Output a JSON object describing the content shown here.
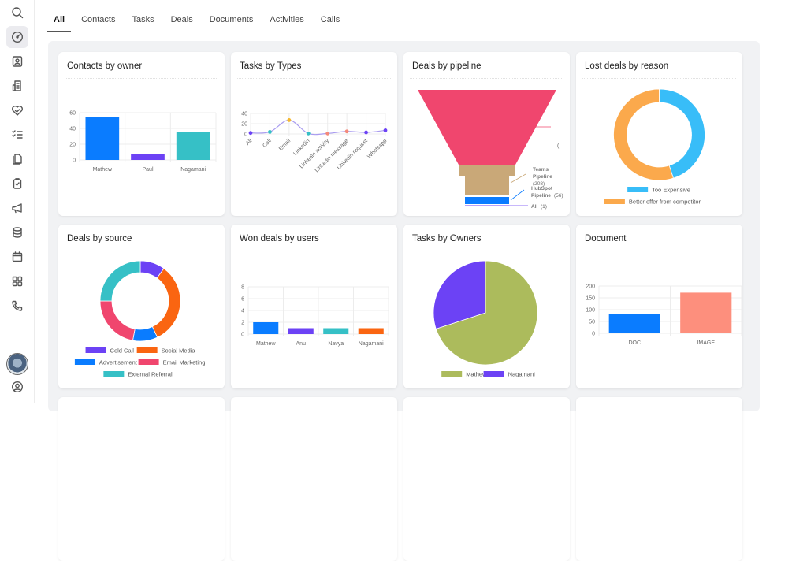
{
  "sidebar": {
    "items": [
      {
        "name": "search-icon"
      },
      {
        "name": "dashboard-icon",
        "active": true
      },
      {
        "name": "contacts-icon"
      },
      {
        "name": "companies-icon"
      },
      {
        "name": "deals-icon"
      },
      {
        "name": "tasks-icon"
      },
      {
        "name": "documents-icon"
      },
      {
        "name": "activities-icon"
      },
      {
        "name": "campaigns-icon"
      },
      {
        "name": "database-icon"
      },
      {
        "name": "calendar-icon"
      },
      {
        "name": "apps-icon"
      },
      {
        "name": "calls-icon"
      }
    ],
    "bottom": [
      "avatar",
      "profile-icon"
    ]
  },
  "tabs": [
    {
      "label": "All",
      "active": true
    },
    {
      "label": "Contacts"
    },
    {
      "label": "Tasks"
    },
    {
      "label": "Deals"
    },
    {
      "label": "Documents"
    },
    {
      "label": "Activities"
    },
    {
      "label": "Calls"
    }
  ],
  "cards": {
    "contacts_by_owner": {
      "title": "Contacts by owner"
    },
    "tasks_by_types": {
      "title": "Tasks by Types"
    },
    "deals_by_pipeline": {
      "title": "Deals by pipeline"
    },
    "lost_deals_by_reason": {
      "title": "Lost deals by reason"
    },
    "deals_by_source": {
      "title": "Deals by source"
    },
    "won_deals_by_users": {
      "title": "Won deals by users"
    },
    "tasks_by_owners": {
      "title": "Tasks by Owners"
    },
    "document": {
      "title": "Document"
    }
  },
  "chart_data": [
    {
      "id": "contacts_by_owner",
      "type": "bar",
      "title": "Contacts by owner",
      "categories": [
        "Mathew",
        "Paul",
        "Nagamani"
      ],
      "values": [
        55,
        8,
        36
      ],
      "colors": [
        "#0a7cff",
        "#6c42f5",
        "#36c0c6"
      ],
      "yticks": [
        0,
        20,
        40,
        60
      ],
      "ylim": [
        0,
        60
      ],
      "grid": true
    },
    {
      "id": "tasks_by_types",
      "type": "line",
      "title": "Tasks by Types",
      "categories": [
        "All",
        "Call",
        "Email",
        "Linkedin",
        "Linkedin activity",
        "Linkedin message",
        "Linkedin request",
        "Whatsapp"
      ],
      "values": [
        2,
        4,
        27,
        1,
        1,
        5,
        3,
        7
      ],
      "point_colors": [
        "#6c42f5",
        "#36c0c6",
        "#f5b82e",
        "#36c0c6",
        "#f58a7a",
        "#f58a7a",
        "#6c42f5",
        "#6c42f5"
      ],
      "yticks": [
        0,
        20,
        40
      ],
      "ylim": [
        0,
        40
      ],
      "grid": true
    },
    {
      "id": "deals_by_pipeline",
      "type": "funnel",
      "title": "Deals by pipeline",
      "labels": [
        "(...)",
        "Teams Pipeline (208)",
        "HubSpot Pipeline (56)",
        "All (1)"
      ],
      "stages": [
        {
          "label": "(...)",
          "color": "#f0466e"
        },
        {
          "label": "Teams Pipeline",
          "value": 208,
          "color": "#c9a878"
        },
        {
          "label": "HubSpot Pipeline",
          "value": 56,
          "color": "#0a7cff"
        },
        {
          "label": "All",
          "value": 1,
          "color": "#6c42f5"
        }
      ]
    },
    {
      "id": "lost_deals_by_reason",
      "type": "pie",
      "donut": true,
      "title": "Lost deals by reason",
      "labels": [
        "Too Expensive",
        "Better offer from competitor"
      ],
      "values": [
        45,
        55
      ],
      "colors": [
        "#38bdf8",
        "#fba94c"
      ],
      "legend_position": "bottom"
    },
    {
      "id": "deals_by_source",
      "type": "pie",
      "donut": true,
      "title": "Deals by source",
      "labels": [
        "Cold Call",
        "Social Media",
        "Advertisement",
        "Email Marketing",
        "External Referral"
      ],
      "values": [
        10,
        33,
        10,
        22,
        25
      ],
      "colors": [
        "#6c42f5",
        "#fa6511",
        "#0a7cff",
        "#f0466e",
        "#36c0c6"
      ],
      "legend_position": "bottom"
    },
    {
      "id": "won_deals_by_users",
      "type": "bar",
      "title": "Won deals by users",
      "categories": [
        "Mathew",
        "Anu",
        "Navya",
        "Nagamani"
      ],
      "values": [
        2,
        1,
        1,
        1
      ],
      "colors": [
        "#0a7cff",
        "#6c42f5",
        "#36c0c6",
        "#fa6511"
      ],
      "yticks": [
        0,
        2,
        4,
        6,
        8
      ],
      "ylim": [
        0,
        8
      ],
      "grid": true
    },
    {
      "id": "tasks_by_owners",
      "type": "pie",
      "title": "Tasks by Owners",
      "labels": [
        "Mathew",
        "Nagamani"
      ],
      "values": [
        70,
        30
      ],
      "colors": [
        "#acbb5c",
        "#6c42f5"
      ],
      "legend_position": "bottom"
    },
    {
      "id": "document",
      "type": "bar",
      "title": "Document",
      "categories": [
        "DOC",
        "IMAGE"
      ],
      "values": [
        80,
        172
      ],
      "colors": [
        "#0a7cff",
        "#fd8f7d"
      ],
      "yticks": [
        0,
        50,
        100,
        150,
        200
      ],
      "ylim": [
        0,
        200
      ],
      "grid": true
    }
  ]
}
